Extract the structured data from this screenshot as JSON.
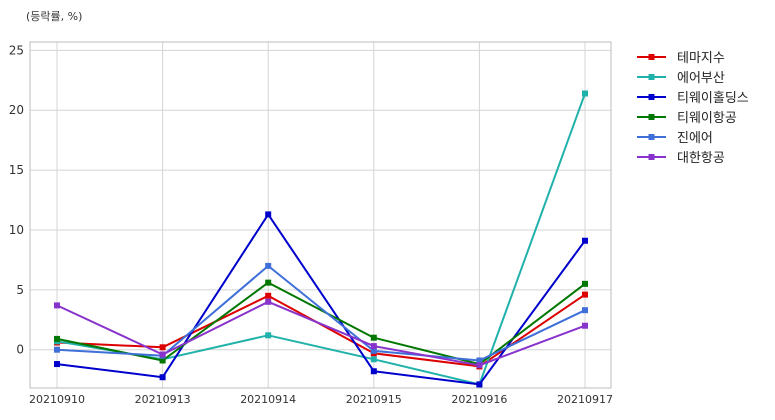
{
  "chart_data": {
    "type": "line",
    "ylabel": "(등락률, %)",
    "categories": [
      "20210910",
      "20210913",
      "20210914",
      "20210915",
      "20210916",
      "20210917"
    ],
    "ylim": [
      -3.2,
      25.7
    ],
    "yticks": [
      0,
      5,
      10,
      15,
      20,
      25
    ],
    "grid": true,
    "legend_position": "outside-top-right",
    "series": [
      {
        "name": "테마지수",
        "color": "#dd0000",
        "values": [
          0.6,
          0.2,
          4.5,
          -0.3,
          -1.4,
          4.6
        ]
      },
      {
        "name": "에어부산",
        "color": "#20b2aa",
        "values": [
          0.7,
          -0.8,
          1.2,
          -0.8,
          -2.9,
          21.4
        ]
      },
      {
        "name": "티웨이홀딩스",
        "color": "#0000cc",
        "values": [
          -1.2,
          -2.3,
          11.3,
          -1.8,
          -2.9,
          9.1
        ]
      },
      {
        "name": "티웨이항공",
        "color": "#007700",
        "values": [
          0.9,
          -0.9,
          5.6,
          1.0,
          -1.2,
          5.5
        ]
      },
      {
        "name": "진에어",
        "color": "#3f6fd8",
        "values": [
          0.0,
          -0.5,
          7.0,
          -0.1,
          -0.9,
          3.3
        ]
      },
      {
        "name": "대한항공",
        "color": "#8833cc",
        "values": [
          3.7,
          -0.4,
          4.0,
          0.3,
          -1.3,
          2.0
        ]
      }
    ]
  }
}
